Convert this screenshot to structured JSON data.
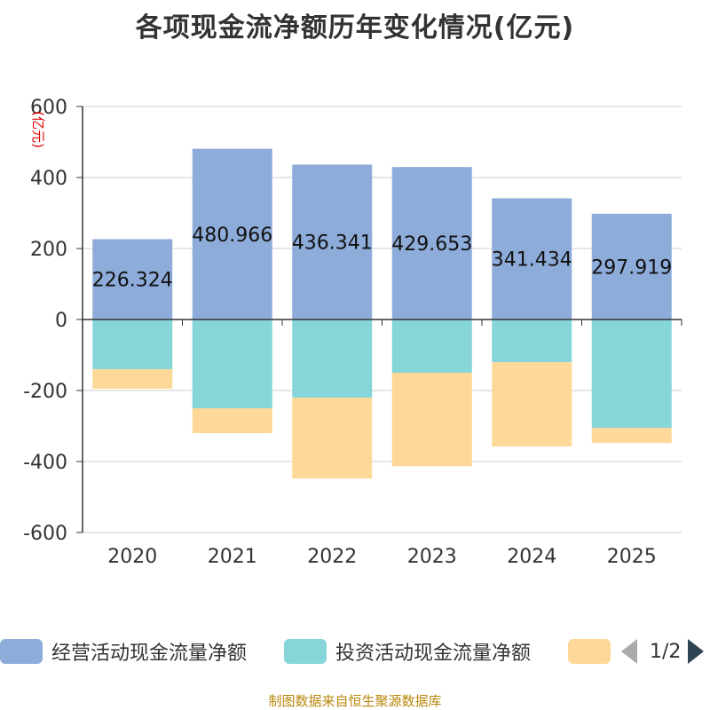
{
  "chart_data": {
    "type": "bar",
    "stacked": true,
    "title": "各项现金流净额历年变化情况(亿元)",
    "ylabel": "(亿元)",
    "categories": [
      "2020",
      "2021",
      "2022",
      "2023",
      "2024",
      "2025"
    ],
    "ylim": [
      -600,
      600
    ],
    "yticks": [
      600,
      400,
      200,
      0,
      -200,
      -400,
      -600
    ],
    "series": [
      {
        "name": "经营活动现金流量净额",
        "color": "#8eacd9",
        "values": [
          226.324,
          480.966,
          436.341,
          429.653,
          341.434,
          297.919
        ],
        "labels": [
          "226.324",
          "480.966",
          "436.341",
          "429.653",
          "341.434",
          "297.919"
        ]
      },
      {
        "name": "投资活动现金流量净额",
        "color": "#86d5d8",
        "values": [
          -140,
          -250,
          -220,
          -150,
          -120,
          -305
        ]
      },
      {
        "name": "",
        "color": "#fed898",
        "values": [
          -55,
          -70,
          -228,
          -263,
          -238,
          -43
        ]
      }
    ]
  },
  "legend": {
    "items": [
      {
        "label": "经营活动现金流量净额",
        "color": "#8eacd9"
      },
      {
        "label": "投资活动现金流量净额",
        "color": "#86d5d8"
      },
      {
        "label": "",
        "color": "#fed898"
      }
    ],
    "page_text": "1/2"
  },
  "footer": {
    "source": "制图数据来自恒生聚源数据库"
  }
}
